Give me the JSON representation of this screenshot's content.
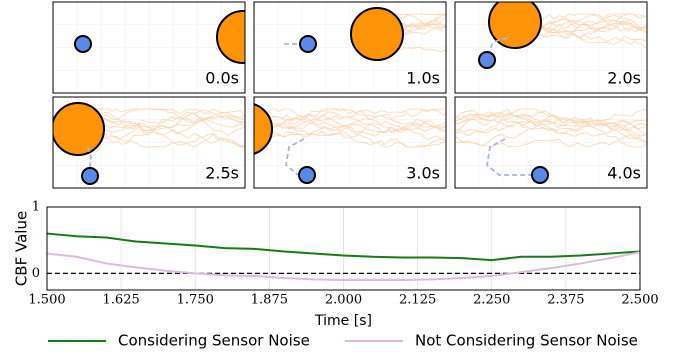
{
  "snapshots": [
    {
      "label": "0.0s"
    },
    {
      "label": "1.0s"
    },
    {
      "label": "2.0s"
    },
    {
      "label": "2.5s"
    },
    {
      "label": "3.0s"
    },
    {
      "label": "4.0s"
    }
  ],
  "chart_data": {
    "type": "line",
    "xlabel": "Time [s]",
    "ylabel": "CBF Value",
    "x": [
      1.5,
      1.55,
      1.6,
      1.65,
      1.7,
      1.75,
      1.8,
      1.85,
      1.9,
      1.95,
      2.0,
      2.05,
      2.1,
      2.15,
      2.2,
      2.25,
      2.3,
      2.35,
      2.4,
      2.45,
      2.5
    ],
    "series": [
      {
        "name": "Considering Sensor Noise",
        "color": "#1a7a1a",
        "values": [
          0.6,
          0.56,
          0.54,
          0.48,
          0.45,
          0.42,
          0.38,
          0.37,
          0.33,
          0.3,
          0.27,
          0.25,
          0.24,
          0.24,
          0.23,
          0.2,
          0.25,
          0.25,
          0.27,
          0.3,
          0.33
        ]
      },
      {
        "name": "Not Considering Sensor Noise",
        "color": "#d8bcd8",
        "values": [
          0.3,
          0.25,
          0.15,
          0.09,
          0.04,
          0.0,
          -0.03,
          -0.04,
          -0.07,
          -0.09,
          -0.1,
          -0.1,
          -0.1,
          -0.09,
          -0.07,
          -0.04,
          0.02,
          0.08,
          0.15,
          0.23,
          0.32
        ]
      }
    ],
    "xlim": [
      1.5,
      2.5
    ],
    "xticks": [
      {
        "value": 1.5,
        "label": "1.500"
      },
      {
        "value": 1.625,
        "label": "1.625"
      },
      {
        "value": 1.75,
        "label": "1.750"
      },
      {
        "value": 1.875,
        "label": "1.875"
      },
      {
        "value": 2.0,
        "label": "2.000"
      },
      {
        "value": 2.125,
        "label": "2.125"
      },
      {
        "value": 2.25,
        "label": "2.250"
      },
      {
        "value": 2.375,
        "label": "2.375"
      },
      {
        "value": 2.5,
        "label": "2.500"
      }
    ],
    "ylim": [
      -0.25,
      1
    ],
    "yticks": [
      0,
      1
    ],
    "reference_line": 0,
    "grid": true
  }
}
